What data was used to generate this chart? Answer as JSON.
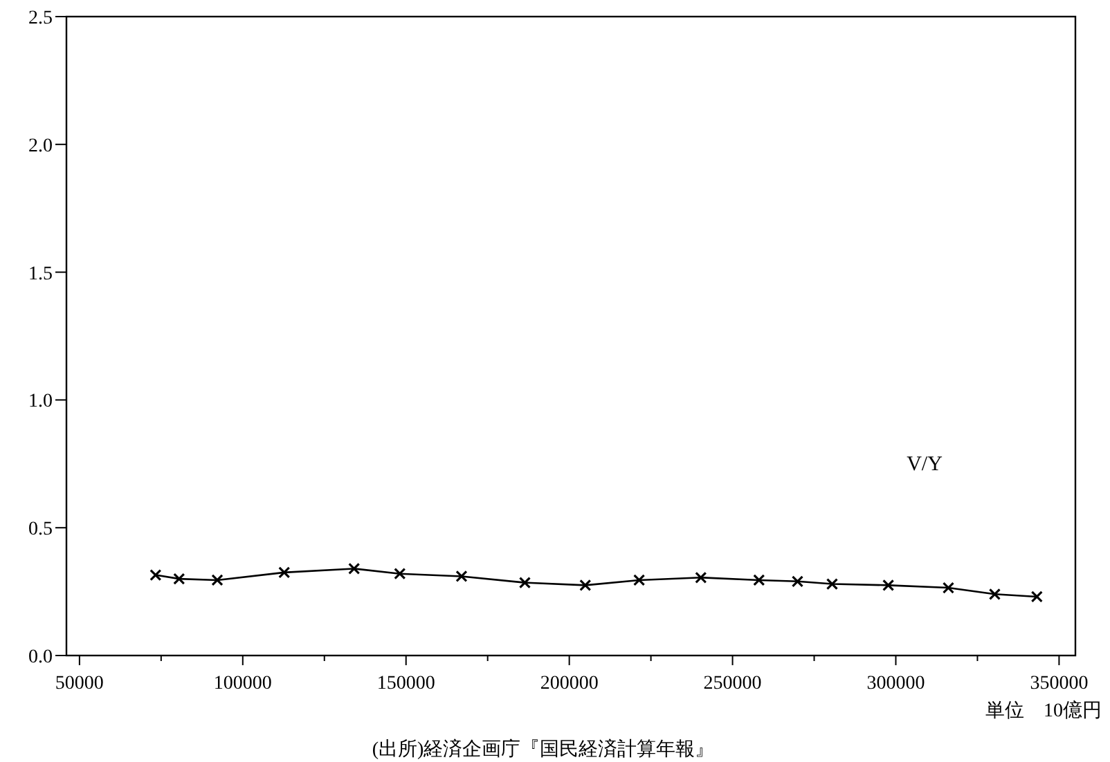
{
  "chart_data": {
    "type": "line",
    "marker": "cross",
    "line_style": "solid",
    "grid": false,
    "xlim": [
      46000,
      355000
    ],
    "xticks": [
      50000,
      {
        "value": 75000,
        "label": null
      },
      100000,
      {
        "value": 125000,
        "label": null
      },
      150000,
      {
        "value": 175000,
        "label": null
      },
      200000,
      {
        "value": 225000,
        "label": null
      },
      250000,
      {
        "value": 275000,
        "label": null
      },
      300000,
      {
        "value": 325000,
        "label": null
      },
      350000
    ],
    "ylim": [
      0,
      2.5
    ],
    "yticks": [
      {
        "value": 0,
        "label": "0.0"
      },
      0.5,
      {
        "value": 1,
        "label": "1.0"
      },
      1.5,
      {
        "value": 2,
        "label": "2.0"
      },
      2.5
    ],
    "series": [
      {
        "color": "#000000",
        "x": [
          73300,
          80500,
          92200,
          112700,
          134100,
          148100,
          167000,
          186400,
          204900,
          221400,
          240300,
          258100,
          269900,
          280500,
          297700,
          316100,
          330300,
          343200
        ],
        "values": [
          0.315,
          0.3,
          0.295,
          0.325,
          0.34,
          0.32,
          0.31,
          0.285,
          0.275,
          0.295,
          0.305,
          0.295,
          0.29,
          0.28,
          0.275,
          0.265,
          0.24,
          0.23
        ]
      }
    ],
    "annotations": [
      "V/Y",
      "単位　10億円",
      "(出所)経済企画庁『国民経済計算年報』"
    ]
  }
}
